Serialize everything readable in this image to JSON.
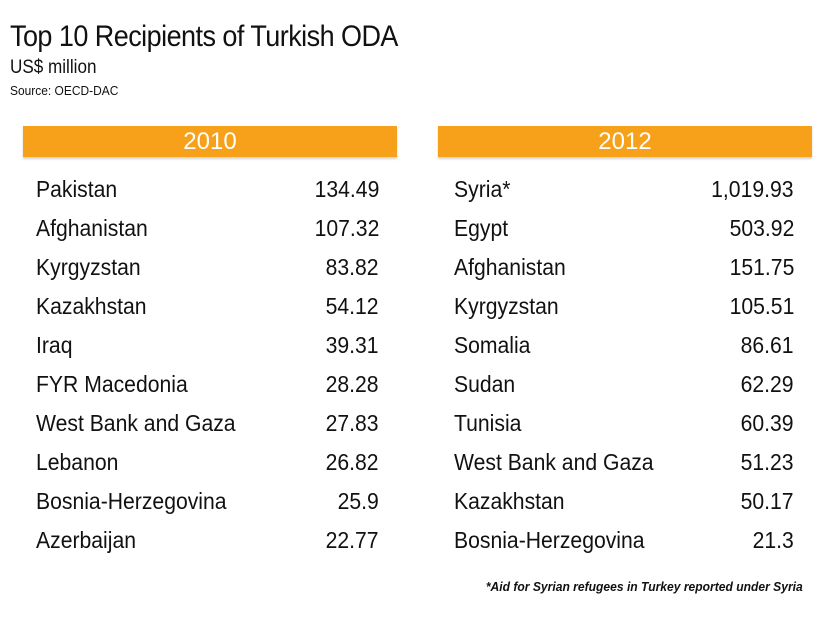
{
  "header": {
    "title": "Top 10 Recipients of Turkish ODA",
    "subtitle": "US$ million",
    "source": "Source: OECD-DAC"
  },
  "footnote": "*Aid for Syrian refugees in Turkey reported under Syria",
  "colors": {
    "header_bar": "#f7a11a",
    "header_text": "#ffffff",
    "text": "#111111"
  },
  "chart_data": [
    {
      "type": "table",
      "title": "2010",
      "rows": [
        {
          "country": "Pakistan",
          "value": "134.49"
        },
        {
          "country": "Afghanistan",
          "value": "107.32"
        },
        {
          "country": "Kyrgyzstan",
          "value": "83.82"
        },
        {
          "country": "Kazakhstan",
          "value": "54.12"
        },
        {
          "country": "Iraq",
          "value": "39.31"
        },
        {
          "country": "FYR Macedonia",
          "value": "28.28"
        },
        {
          "country": "West Bank and Gaza",
          "value": "27.83"
        },
        {
          "country": "Lebanon",
          "value": "26.82"
        },
        {
          "country": "Bosnia-Herzegovina",
          "value": "25.9"
        },
        {
          "country": "Azerbaijan",
          "value": "22.77"
        }
      ]
    },
    {
      "type": "table",
      "title": "2012",
      "rows": [
        {
          "country": "Syria*",
          "value": "1,019.93"
        },
        {
          "country": "Egypt",
          "value": "503.92"
        },
        {
          "country": "Afghanistan",
          "value": "151.75"
        },
        {
          "country": "Kyrgyzstan",
          "value": "105.51"
        },
        {
          "country": "Somalia",
          "value": "86.61"
        },
        {
          "country": "Sudan",
          "value": "62.29"
        },
        {
          "country": "Tunisia",
          "value": "60.39"
        },
        {
          "country": "West Bank and Gaza",
          "value": "51.23"
        },
        {
          "country": "Kazakhstan",
          "value": "50.17"
        },
        {
          "country": "Bosnia-Herzegovina",
          "value": "21.3"
        }
      ]
    }
  ]
}
